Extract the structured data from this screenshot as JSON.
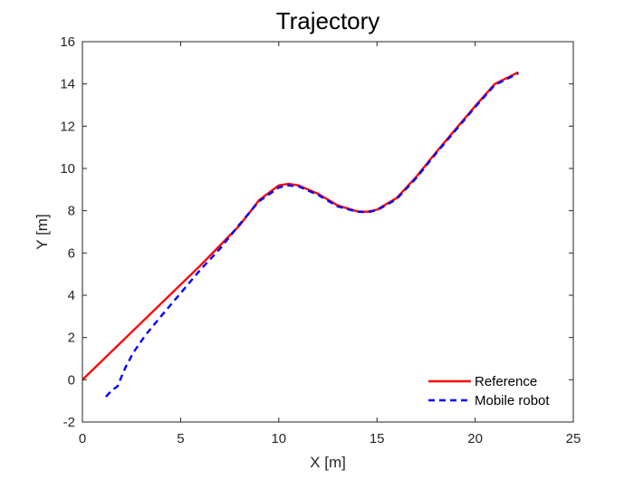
{
  "chart_data": {
    "type": "line",
    "title": "Trajectory",
    "xlabel": "X [m]",
    "ylabel": "Y [m]",
    "xlim": [
      0,
      25
    ],
    "ylim": [
      -2,
      16
    ],
    "xticks": [
      0,
      5,
      10,
      15,
      20,
      25
    ],
    "yticks": [
      -2,
      0,
      2,
      4,
      6,
      8,
      10,
      12,
      14,
      16
    ],
    "grid": false,
    "legend_position": "bottom-right",
    "series": [
      {
        "name": "Reference",
        "color": "#ff0000",
        "style": "solid",
        "x": [
          0,
          2,
          4,
          6,
          8,
          9,
          10,
          10.5,
          11,
          12,
          13,
          14,
          14.5,
          15,
          16,
          17,
          18,
          19,
          20,
          21,
          22.2
        ],
        "y": [
          0,
          1.8,
          3.6,
          5.4,
          7.3,
          8.5,
          9.2,
          9.27,
          9.2,
          8.8,
          8.25,
          7.97,
          7.95,
          8.05,
          8.6,
          9.6,
          10.75,
          11.85,
          12.95,
          14.0,
          14.55
        ]
      },
      {
        "name": "Mobile robot",
        "color": "#0000ff",
        "style": "dashed",
        "x": [
          1.2,
          1.5,
          1.8,
          1.9,
          2.2,
          2.6,
          3.2,
          4,
          5,
          6,
          7,
          8,
          9,
          10,
          10.5,
          11,
          12,
          13,
          14,
          14.5,
          15,
          16,
          17,
          18,
          19,
          20,
          21,
          22.2
        ],
        "y": [
          -0.8,
          -0.5,
          -0.3,
          -0.05,
          0.6,
          1.3,
          2.1,
          3.0,
          4.1,
          5.2,
          6.2,
          7.35,
          8.45,
          9.1,
          9.2,
          9.15,
          8.75,
          8.2,
          7.95,
          7.93,
          8.02,
          8.55,
          9.55,
          10.7,
          11.8,
          12.9,
          13.95,
          14.5
        ]
      }
    ]
  }
}
